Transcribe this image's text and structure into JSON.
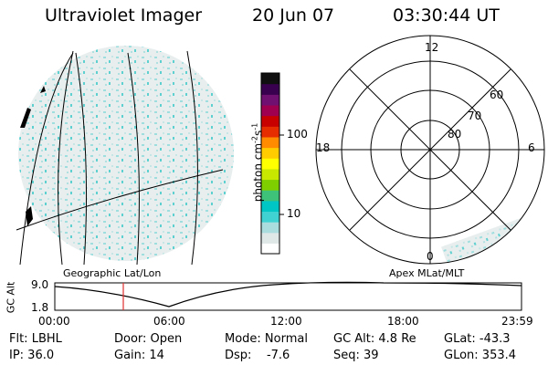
{
  "header": {
    "title": "Ultraviolet Imager",
    "date": "20 Jun 07",
    "time": "03:30:44 UT"
  },
  "colorbar": {
    "unit_label": "photon cm",
    "unit_exp1": "-2",
    "unit_mid": "s",
    "unit_exp2": "-1",
    "ticks": [
      "100",
      "10"
    ],
    "colors": [
      "#ffffff",
      "#dfe7e7",
      "#aadede",
      "#40d2d2",
      "#00c6c6",
      "#3ec27a",
      "#7fcf00",
      "#c8e800",
      "#ffff00",
      "#ffcc00",
      "#ff8c00",
      "#e62d00",
      "#c80000",
      "#a00050",
      "#701070",
      "#3a0050",
      "#101010"
    ]
  },
  "polar": {
    "labels": {
      "top": "12",
      "left": "18",
      "right": "6",
      "bottom": "0"
    },
    "lat_labels": [
      "60",
      "70",
      "80"
    ]
  },
  "timeline": {
    "ylabel": "GC Alt",
    "ymax": "9.0",
    "ymin": "1.8",
    "left_label": "Geographic Lat/Lon",
    "right_label": "Apex  MLat/MLT",
    "xticks": [
      "00:00",
      "06:00",
      "12:00",
      "18:00",
      "23:59"
    ],
    "marker_time": "03:30:44"
  },
  "info": {
    "row1": [
      {
        "text": "Flt: LBHL"
      },
      {
        "text": "Door: Open"
      },
      {
        "text": "Mode: Normal"
      },
      {
        "text": "GC Alt: 4.8 Re"
      },
      {
        "text": "GLat: -43.3"
      }
    ],
    "row2": [
      {
        "text": "IP: 36.0"
      },
      {
        "text": "Gain: 14"
      },
      {
        "text": "Dsp:    -7.6"
      },
      {
        "text": "Seq: 39"
      },
      {
        "text": "GLon: 353.4"
      }
    ]
  }
}
